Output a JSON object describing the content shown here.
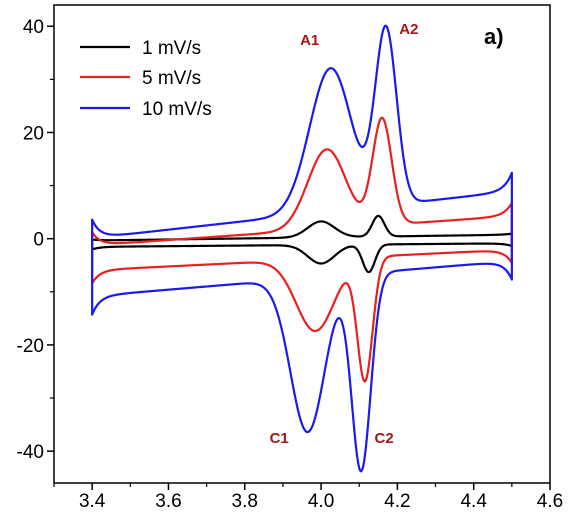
{
  "chart_data": {
    "type": "line",
    "title": "",
    "panel_label": "a)",
    "xlabel": "",
    "ylabel": "",
    "xlim": [
      3.3,
      4.6
    ],
    "ylim": [
      -46,
      44
    ],
    "x_ticks": [
      3.4,
      3.6,
      3.8,
      4.0,
      4.2,
      4.4,
      4.6
    ],
    "x_tick_labels": [
      "3.4",
      "3.6",
      "3.8",
      "4.0",
      "4.2",
      "4.4",
      "4.6"
    ],
    "y_ticks": [
      -40,
      -20,
      0,
      20,
      40
    ],
    "y_tick_labels": [
      "-40",
      "-20",
      "0",
      "20",
      "40"
    ],
    "grid": false,
    "legend_position": "top-left",
    "series": [
      {
        "name": "1 mV/s",
        "color": "#000000",
        "x_min": 3.4,
        "x_max": 4.5,
        "anodic": {
          "base": 0.2,
          "slope": 1.0,
          "tail_amp": 0.2,
          "peaks": [
            [
              4.0,
              3.0,
              0.035
            ],
            [
              4.15,
              3.9,
              0.016
            ]
          ]
        },
        "cathodic": {
          "base": -1.2,
          "slope": 0.6,
          "tail_amp": 0.5,
          "peaks": [
            [
              4.0,
              -3.5,
              0.035
            ],
            [
              4.125,
              -5.2,
              0.016
            ]
          ]
        }
      },
      {
        "name": "5 mV/s",
        "color": "#e8201f",
        "x_min": 3.4,
        "x_max": 4.5,
        "anodic": {
          "base": 1.5,
          "slope": 5.0,
          "tail_amp": 2.5,
          "peaks": [
            [
              4.015,
              15.0,
              0.05
            ],
            [
              4.16,
              20.0,
              0.025
            ]
          ]
        },
        "cathodic": {
          "base": -4.0,
          "slope": 3.5,
          "tail_amp": 2.5,
          "peaks": [
            [
              3.985,
              -13.5,
              0.05
            ],
            [
              4.115,
              -23.0,
              0.02
            ]
          ]
        }
      },
      {
        "name": "10 mV/s",
        "color": "#1a1aee",
        "x_min": 3.4,
        "x_max": 4.5,
        "anodic": {
          "base": 4.5,
          "slope": 8.0,
          "tail_amp": 3.5,
          "peaks": [
            [
              4.025,
              27.0,
              0.055
            ],
            [
              4.17,
              33.0,
              0.028
            ]
          ]
        },
        "cathodic": {
          "base": -7.5,
          "slope": 6.0,
          "tail_amp": 3.5,
          "peaks": [
            [
              3.965,
              -29.0,
              0.045
            ],
            [
              4.105,
              -37.0,
              0.025
            ]
          ]
        }
      }
    ],
    "annotations": [
      {
        "text": "A1",
        "x": 3.945,
        "y": 36.5
      },
      {
        "text": "A2",
        "x": 4.205,
        "y": 38.5
      },
      {
        "text": "C1",
        "x": 3.865,
        "y": -38.5
      },
      {
        "text": "C2",
        "x": 4.14,
        "y": -38.5
      }
    ]
  }
}
